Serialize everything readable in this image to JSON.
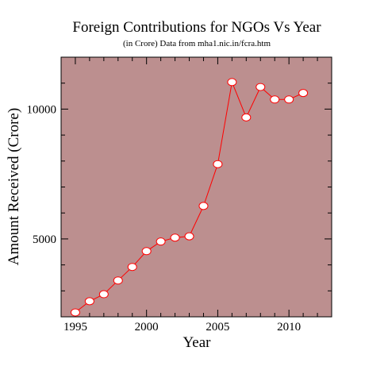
{
  "chart_data": {
    "type": "line",
    "title": "Foreign Contributions for NGOs Vs Year",
    "subtitle": "(in Crore) Data from mha1.nic.in/fcra.htm",
    "xlabel": "Year",
    "ylabel": "Amount Received (Crore)",
    "xlim": [
      1994,
      2013
    ],
    "ylim": [
      2000,
      12000
    ],
    "x_ticks": [
      1995,
      2000,
      2005,
      2010
    ],
    "y_ticks": [
      5000,
      10000
    ],
    "grid": false,
    "colors": {
      "background": "#bc8f8f",
      "line": "#ff0000",
      "marker_fill": "#ffffff"
    },
    "series": [
      {
        "x": [
          1995,
          1996,
          1997,
          1998,
          1999,
          2000,
          2001,
          2002,
          2003,
          2004,
          2005,
          2006,
          2007,
          2008,
          2009,
          2010,
          2011
        ],
        "values": [
          2170,
          2600,
          2870,
          3400,
          3920,
          4530,
          4900,
          5050,
          5100,
          6270,
          7880,
          11040,
          9680,
          10850,
          10370,
          10370,
          10620
        ]
      }
    ]
  }
}
